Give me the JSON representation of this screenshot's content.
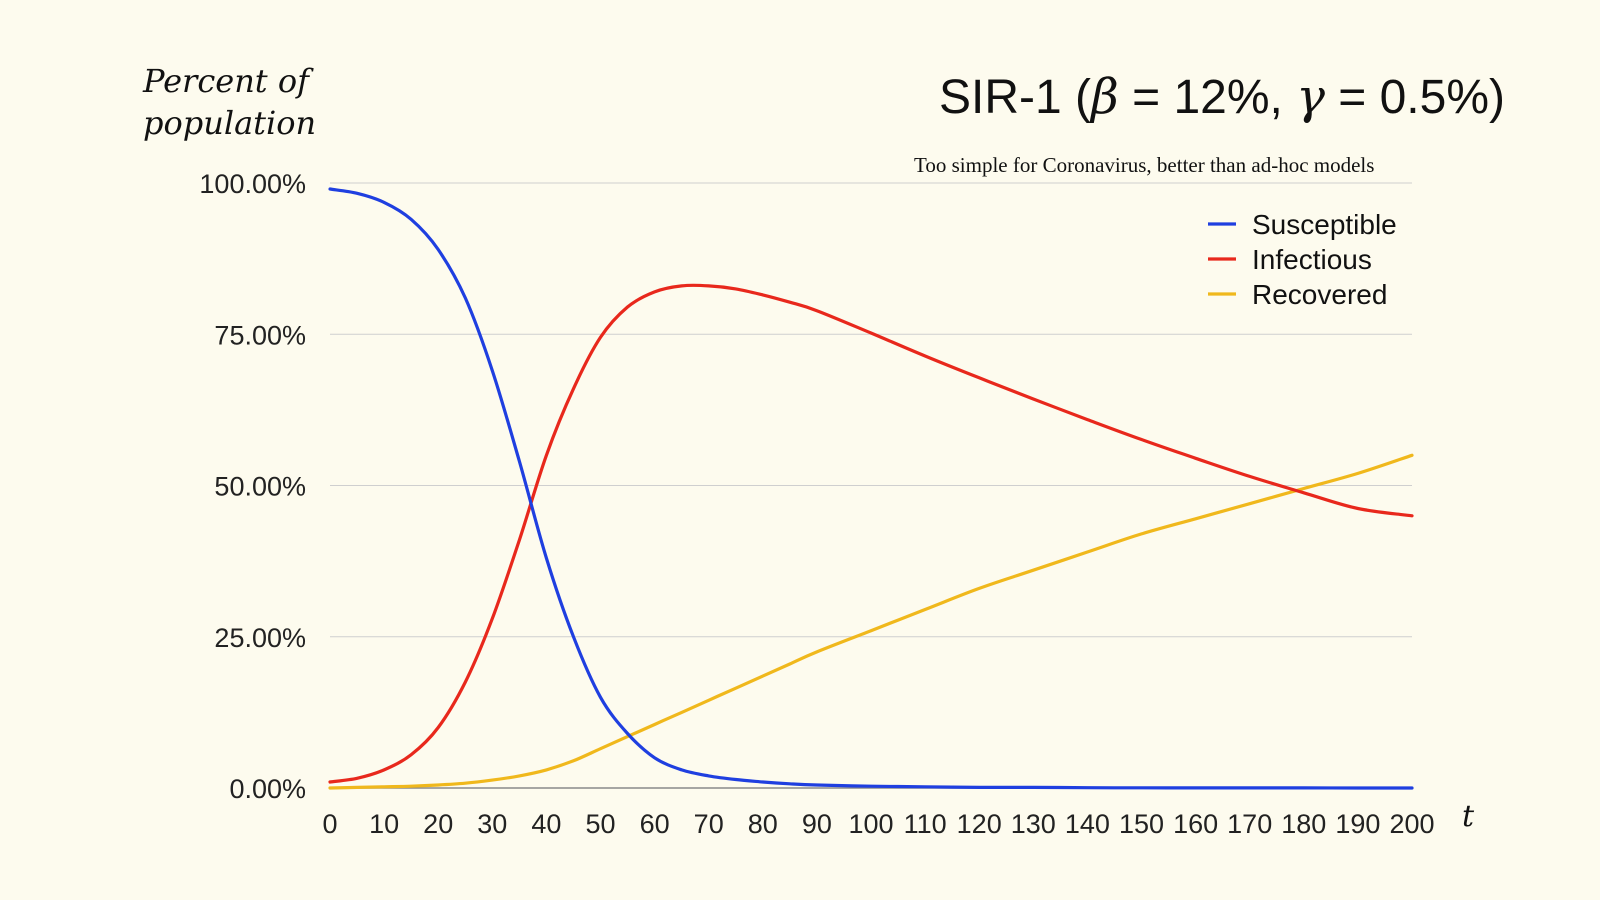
{
  "chart_data": {
    "type": "line",
    "title_parts": [
      "SIR-1 (",
      "β",
      " = 12%, ",
      "γ",
      " = 0.5%)"
    ],
    "subtitle": "Too simple for Coronavirus, better than ad-hoc models",
    "ylabel_lines": [
      "Percent of",
      "population"
    ],
    "xlabel": "t",
    "ylim": [
      0,
      100
    ],
    "xlim": [
      0,
      200
    ],
    "y_ticks": [
      0,
      25,
      50,
      75,
      100
    ],
    "y_tick_labels": [
      "0.00%",
      "25.00%",
      "50.00%",
      "75.00%",
      "100.00%"
    ],
    "x_ticks": [
      0,
      10,
      20,
      30,
      40,
      50,
      60,
      70,
      80,
      90,
      100,
      110,
      120,
      130,
      140,
      150,
      160,
      170,
      180,
      190,
      200
    ],
    "x_tick_labels": [
      "0",
      "10",
      "20",
      "30",
      "40",
      "50",
      "60",
      "70",
      "80",
      "90",
      "100",
      "110",
      "120",
      "130",
      "140",
      "150",
      "160",
      "170",
      "180",
      "190",
      "200"
    ],
    "grid": true,
    "legend_position": "top-right",
    "x": [
      0,
      5,
      10,
      15,
      20,
      25,
      30,
      35,
      40,
      45,
      50,
      55,
      60,
      65,
      70,
      75,
      80,
      85,
      90,
      100,
      110,
      120,
      130,
      140,
      150,
      160,
      170,
      180,
      190,
      200
    ],
    "series": [
      {
        "name": "Susceptible",
        "color": "#1f3fe0",
        "values": [
          99.0,
          98.3,
          96.8,
          94.0,
          89.0,
          81.0,
          69.0,
          54.0,
          38.0,
          25.0,
          15.0,
          9.0,
          5.0,
          3.0,
          2.0,
          1.4,
          1.0,
          0.7,
          0.5,
          0.3,
          0.2,
          0.1,
          0.1,
          0.05,
          0.03,
          0.02,
          0.01,
          0.01,
          0.0,
          0.0
        ]
      },
      {
        "name": "Infectious",
        "color": "#e8281c",
        "values": [
          1.0,
          1.6,
          3.0,
          5.5,
          10.0,
          17.5,
          28.0,
          41.0,
          55.0,
          66.0,
          74.5,
          79.5,
          82.0,
          83.0,
          83.0,
          82.5,
          81.5,
          80.3,
          78.9,
          75.2,
          71.4,
          67.8,
          64.3,
          60.9,
          57.6,
          54.5,
          51.5,
          48.8,
          46.2,
          45.0
        ]
      },
      {
        "name": "Recovered",
        "color": "#f0b81c",
        "values": [
          0.0,
          0.1,
          0.2,
          0.3,
          0.5,
          0.8,
          1.3,
          2.0,
          3.0,
          4.5,
          6.5,
          8.5,
          10.5,
          12.5,
          14.5,
          16.5,
          18.5,
          20.5,
          22.5,
          26.0,
          29.5,
          33.0,
          36.0,
          39.0,
          42.0,
          44.5,
          47.0,
          49.5,
          52.0,
          55.0
        ]
      }
    ]
  }
}
